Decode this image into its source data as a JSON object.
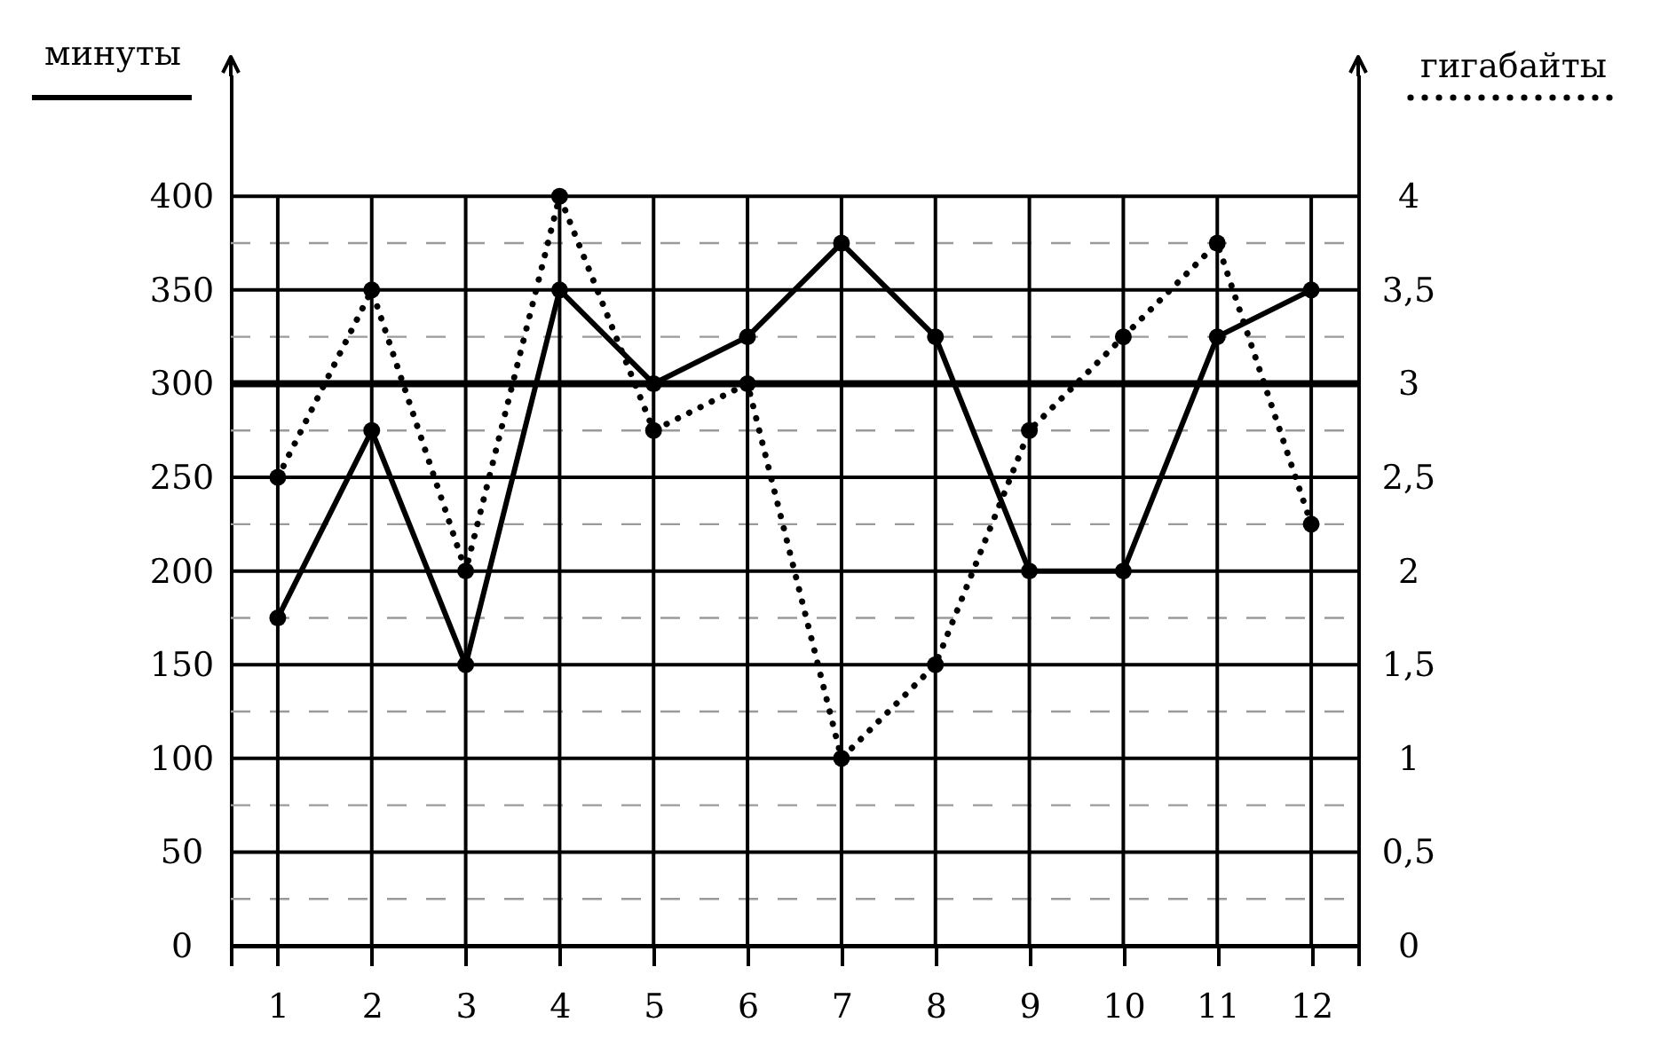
{
  "chart_data": {
    "type": "line",
    "ylabel": "минуты",
    "y2label": "гигабайты",
    "x": [
      1,
      2,
      3,
      4,
      5,
      6,
      7,
      8,
      9,
      10,
      11,
      12
    ],
    "xlim": [
      0.5,
      12.5
    ],
    "xticks": [
      {
        "value": 0.5,
        "label": null
      },
      1,
      2,
      3,
      4,
      5,
      6,
      7,
      8,
      9,
      10,
      11,
      12,
      {
        "value": 12.5,
        "label": null
      }
    ],
    "ylim": [
      0,
      465
    ],
    "yticks": [
      0,
      {
        "value": 25,
        "label": null
      },
      50,
      {
        "value": 75,
        "label": null
      },
      100,
      {
        "value": 125,
        "label": null
      },
      150,
      {
        "value": 175,
        "label": null
      },
      200,
      {
        "value": 225,
        "label": null
      },
      250,
      {
        "value": 275,
        "label": null
      },
      300,
      {
        "value": 325,
        "label": null
      },
      350,
      {
        "value": 375,
        "label": null
      },
      400
    ],
    "y2lim": [
      0,
      4.65
    ],
    "y2ticks": [
      0,
      {
        "value": 0.5,
        "label": "0,5"
      },
      1,
      {
        "value": 1.5,
        "label": "1,5"
      },
      2,
      {
        "value": 2.5,
        "label": "2,5"
      },
      3,
      {
        "value": 3.5,
        "label": "3,5"
      },
      4
    ],
    "series": [
      {
        "color": "#000000",
        "line_style": "solid",
        "values": [
          175,
          275,
          150,
          350,
          300,
          325,
          375,
          325,
          200,
          200,
          325,
          350
        ]
      },
      {
        "color": "#000000",
        "line_style": "dotted",
        "axis": "y2",
        "values": [
          2.5,
          3.5,
          2,
          4,
          2.75,
          3,
          1,
          1.5,
          2.75,
          3.25,
          3.75,
          2.25
        ]
      }
    ],
    "ref_lines": [
      {
        "axis": "y",
        "value": 300,
        "color": "#000000"
      }
    ],
    "grid": true,
    "marker": "circle"
  }
}
